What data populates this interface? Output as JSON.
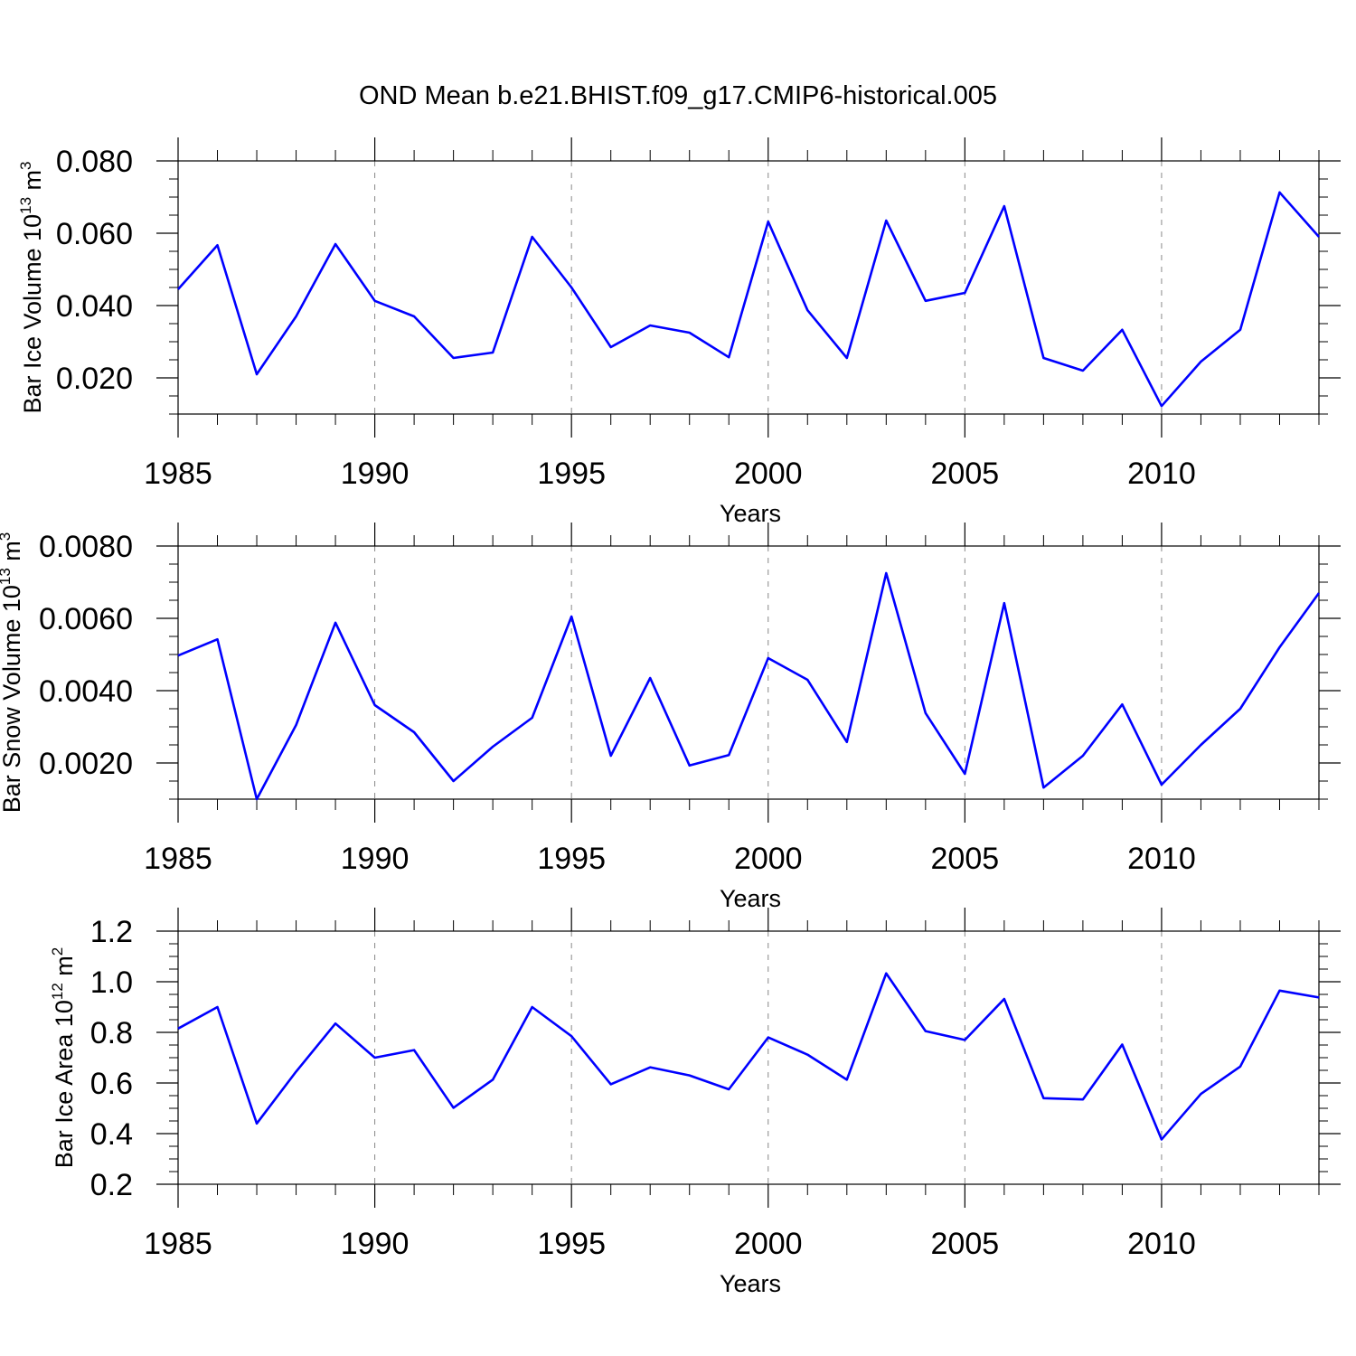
{
  "chart_data": [
    {
      "type": "line",
      "title": "OND Mean b.e21.BHIST.f09_g17.CMIP6-historical.005",
      "xlabel": "Years",
      "ylabel": {
        "prefix": "Bar Ice Volume 10",
        "exp1": "13",
        "unit": " m",
        "exp2": "3"
      },
      "xlim": [
        1985,
        2014
      ],
      "ylim": [
        0.01,
        0.08
      ],
      "xticks": [
        "1985",
        "1990",
        "1995",
        "2000",
        "2005",
        "2010"
      ],
      "yticks": [
        {
          "value": 0.02,
          "label": "0.020"
        },
        {
          "value": 0.04,
          "label": "0.040"
        },
        {
          "value": 0.06,
          "label": "0.060"
        },
        {
          "value": 0.08,
          "label": "0.080"
        }
      ],
      "x": [
        1985,
        1986,
        1987,
        1988,
        1989,
        1990,
        1991,
        1992,
        1993,
        1994,
        1995,
        1996,
        1997,
        1998,
        1999,
        2000,
        2001,
        2002,
        2003,
        2004,
        2005,
        2006,
        2007,
        2008,
        2009,
        2010,
        2011,
        2012,
        2013,
        2014
      ],
      "series": [
        {
          "name": "Bar Ice Volume",
          "color": "#0000ff",
          "values": [
            0.0445,
            0.0567,
            0.021,
            0.037,
            0.057,
            0.0413,
            0.037,
            0.0255,
            0.027,
            0.059,
            0.045,
            0.0285,
            0.0345,
            0.0325,
            0.0257,
            0.0632,
            0.0387,
            0.0255,
            0.0635,
            0.0413,
            0.0435,
            0.0675,
            0.0255,
            0.022,
            0.0333,
            0.0122,
            0.0245,
            0.0333,
            0.0713,
            0.059
          ]
        }
      ]
    },
    {
      "type": "line",
      "xlabel": "Years",
      "ylabel": {
        "prefix": "Bar Snow Volume 10",
        "exp1": "13",
        "unit": " m",
        "exp2": "3"
      },
      "xlim": [
        1985,
        2014
      ],
      "ylim": [
        0.001,
        0.008
      ],
      "xticks": [
        "1985",
        "1990",
        "1995",
        "2000",
        "2005",
        "2010"
      ],
      "yticks": [
        {
          "value": 0.002,
          "label": "0.0020"
        },
        {
          "value": 0.004,
          "label": "0.0040"
        },
        {
          "value": 0.006,
          "label": "0.0060"
        },
        {
          "value": 0.008,
          "label": "0.0080"
        }
      ],
      "x": [
        1985,
        1986,
        1987,
        1988,
        1989,
        1990,
        1991,
        1992,
        1993,
        1994,
        1995,
        1996,
        1997,
        1998,
        1999,
        2000,
        2001,
        2002,
        2003,
        2004,
        2005,
        2006,
        2007,
        2008,
        2009,
        2010,
        2011,
        2012,
        2013,
        2014
      ],
      "series": [
        {
          "name": "Bar Snow Volume",
          "color": "#0000ff",
          "values": [
            0.00497,
            0.00542,
            0.001,
            0.00305,
            0.00588,
            0.0036,
            0.00285,
            0.0015,
            0.00245,
            0.00325,
            0.00605,
            0.0022,
            0.00435,
            0.00193,
            0.00222,
            0.0049,
            0.0043,
            0.00258,
            0.00725,
            0.00338,
            0.0017,
            0.00642,
            0.00132,
            0.0022,
            0.00362,
            0.0014,
            0.0025,
            0.0035,
            0.0052,
            0.0067
          ]
        }
      ]
    },
    {
      "type": "line",
      "xlabel": "Years",
      "ylabel": {
        "prefix": "Bar Ice Area 10",
        "exp1": "12",
        "unit": " m",
        "exp2": "2"
      },
      "xlim": [
        1985,
        2014
      ],
      "ylim": [
        0.2,
        1.2
      ],
      "xticks": [
        "1985",
        "1990",
        "1995",
        "2000",
        "2005",
        "2010"
      ],
      "yticks": [
        {
          "value": 0.2,
          "label": "0.2"
        },
        {
          "value": 0.4,
          "label": "0.4"
        },
        {
          "value": 0.6,
          "label": "0.6"
        },
        {
          "value": 0.8,
          "label": "0.8"
        },
        {
          "value": 1.0,
          "label": "1.0"
        },
        {
          "value": 1.2,
          "label": "1.2"
        }
      ],
      "x": [
        1985,
        1986,
        1987,
        1988,
        1989,
        1990,
        1991,
        1992,
        1993,
        1994,
        1995,
        1996,
        1997,
        1998,
        1999,
        2000,
        2001,
        2002,
        2003,
        2004,
        2005,
        2006,
        2007,
        2008,
        2009,
        2010,
        2011,
        2012,
        2013,
        2014
      ],
      "series": [
        {
          "name": "Bar Ice Area",
          "color": "#0000ff",
          "values": [
            0.815,
            0.9,
            0.44,
            0.645,
            0.835,
            0.7,
            0.73,
            0.502,
            0.613,
            0.9,
            0.785,
            0.595,
            0.662,
            0.63,
            0.575,
            0.78,
            0.712,
            0.613,
            1.033,
            0.805,
            0.77,
            0.932,
            0.54,
            0.535,
            0.752,
            0.377,
            0.557,
            0.665,
            0.965,
            0.938
          ]
        }
      ]
    }
  ]
}
